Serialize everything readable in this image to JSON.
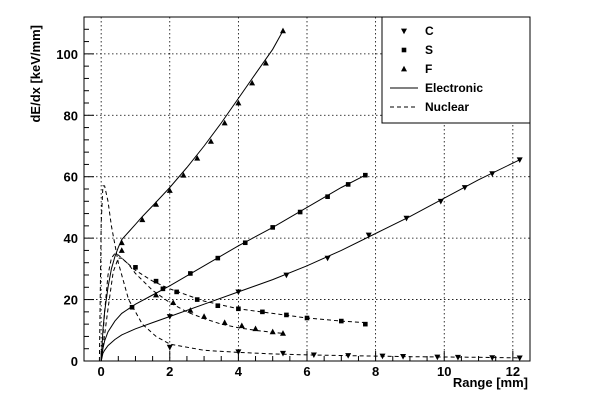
{
  "chart_data": {
    "type": "line",
    "title": "",
    "xlabel": "Range [mm]",
    "ylabel": "dE/dx [keV/mm]",
    "xlim": [
      -0.5,
      12.5
    ],
    "ylim": [
      0,
      112
    ],
    "x_ticks": [
      0,
      2,
      4,
      6,
      8,
      10,
      12
    ],
    "y_ticks": [
      0,
      20,
      40,
      60,
      80,
      100
    ],
    "grid": true,
    "legend_position": "top-right",
    "legend": [
      {
        "label": "C",
        "kind": "marker",
        "marker": "triangle-down"
      },
      {
        "label": "S",
        "kind": "marker",
        "marker": "square"
      },
      {
        "label": "F",
        "kind": "marker",
        "marker": "triangle-up"
      },
      {
        "label": "Electronic",
        "kind": "line",
        "dash": "solid"
      },
      {
        "label": "Nuclear",
        "kind": "line",
        "dash": "dashed"
      }
    ],
    "series": [
      {
        "name": "F",
        "component": "Electronic",
        "marker": "triangle-up",
        "dash": "solid",
        "x": [
          0,
          0.05,
          0.1,
          0.2,
          0.3,
          0.4,
          0.5,
          0.6,
          0.8,
          1.0,
          1.2,
          1.5,
          2.0,
          2.5,
          3.0,
          3.5,
          4.0,
          4.5,
          5.0,
          5.3
        ],
        "y": [
          0,
          10,
          16,
          24,
          30,
          34,
          37,
          39.5,
          42,
          44.5,
          47,
          50.5,
          56.5,
          63,
          70,
          77.5,
          85.5,
          93.5,
          101.5,
          107.5
        ],
        "marker_x": [
          0.6,
          1.2,
          1.6,
          2.0,
          2.4,
          2.8,
          3.2,
          3.6,
          4.0,
          4.4,
          4.8,
          5.3
        ],
        "marker_y": [
          38.5,
          46,
          51,
          55.5,
          60.5,
          66,
          71.5,
          77.5,
          84,
          90.5,
          97,
          107.5
        ]
      },
      {
        "name": "S",
        "component": "Electronic",
        "marker": "square",
        "dash": "solid",
        "x": [
          0,
          0.05,
          0.1,
          0.2,
          0.4,
          0.6,
          0.8,
          1.0,
          1.5,
          2.0,
          3.0,
          4.0,
          5.0,
          6.0,
          7.0,
          7.7
        ],
        "y": [
          0,
          4,
          6.5,
          9.5,
          13,
          15.5,
          17,
          18.5,
          21.5,
          24.5,
          31,
          37.5,
          43.5,
          50,
          56.5,
          60.5
        ],
        "marker_x": [
          0.9,
          1.8,
          2.6,
          3.4,
          4.2,
          5.0,
          5.8,
          6.6,
          7.2,
          7.7
        ],
        "marker_y": [
          17.5,
          23.5,
          28.5,
          33.5,
          38.5,
          43.5,
          48.5,
          53.5,
          57.5,
          60.5
        ]
      },
      {
        "name": "C",
        "component": "Electronic",
        "marker": "triangle-down",
        "dash": "solid",
        "x": [
          0,
          0.05,
          0.1,
          0.2,
          0.4,
          0.6,
          1.0,
          1.5,
          2.0,
          3.0,
          4.0,
          5.0,
          6.0,
          7.0,
          8.0,
          9.0,
          10.0,
          11.0,
          12.2
        ],
        "y": [
          0,
          2.5,
          3.5,
          5,
          7,
          8.5,
          10.5,
          12.5,
          14.5,
          18.5,
          22.5,
          26.5,
          31,
          36,
          41.5,
          47,
          53,
          59,
          65.5
        ],
        "marker_x": [
          2.0,
          4.0,
          5.4,
          6.6,
          7.8,
          8.9,
          9.9,
          10.6,
          11.4,
          12.2
        ],
        "marker_y": [
          14.5,
          22.5,
          28,
          33.5,
          41,
          46.5,
          52,
          56.5,
          61,
          65.5
        ]
      },
      {
        "name": "C",
        "component": "Nuclear",
        "marker": "triangle-down",
        "dash": "dashed",
        "x": [
          -0.05,
          0.0,
          0.05,
          0.1,
          0.2,
          0.3,
          0.5,
          0.8,
          1.2,
          1.6,
          2.0,
          3.0,
          4.0,
          5.0,
          6.0,
          7.0,
          8.0,
          9.0,
          10.0,
          11.0,
          12.2
        ],
        "y": [
          0,
          45,
          57,
          57,
          52,
          44,
          32,
          20,
          12,
          8,
          5.5,
          3.5,
          2.8,
          2.3,
          2.0,
          1.8,
          1.6,
          1.4,
          1.3,
          1.2,
          1.0
        ],
        "marker_x": [
          2.0,
          4.0,
          5.3,
          6.2,
          7.2,
          8.2,
          8.8,
          9.8,
          10.4,
          11.4,
          12.2
        ],
        "marker_y": [
          4.5,
          3.0,
          2.5,
          2.0,
          1.8,
          1.6,
          1.5,
          1.3,
          1.2,
          1.1,
          1.0
        ]
      },
      {
        "name": "S",
        "component": "Nuclear",
        "marker": "square",
        "dash": "dashed",
        "x": [
          0,
          0.1,
          0.2,
          0.3,
          0.4,
          0.5,
          0.7,
          1.0,
          1.5,
          2.0,
          2.5,
          3.0,
          4.0,
          5.0,
          6.0,
          7.0,
          7.7
        ],
        "y": [
          0,
          16,
          28,
          33.5,
          35,
          34.5,
          32.5,
          29.5,
          26,
          23.5,
          21.5,
          19.5,
          17,
          15.5,
          14,
          13,
          12.5
        ],
        "marker_x": [
          1.0,
          1.6,
          2.2,
          2.8,
          3.4,
          4.0,
          4.7,
          5.4,
          6.0,
          7.0,
          7.7
        ],
        "marker_y": [
          30.5,
          26,
          22.5,
          20,
          18,
          17,
          16,
          15,
          14,
          13,
          12
        ]
      },
      {
        "name": "F",
        "component": "Nuclear",
        "marker": "triangle-up",
        "dash": "dashed",
        "x": [
          0,
          0.2,
          0.35,
          0.5,
          0.6,
          0.8,
          1.0,
          1.5,
          2.0,
          2.5,
          3.0,
          3.5,
          4.0,
          4.5,
          5.0,
          5.3
        ],
        "y": [
          0,
          17,
          29,
          33.5,
          33.5,
          31.5,
          28.5,
          23,
          19,
          16,
          13.8,
          12,
          10.8,
          10,
          9.3,
          9
        ],
        "marker_x": [
          0.6,
          1.6,
          2.1,
          2.6,
          3.0,
          3.6,
          4.1,
          4.5,
          5.0,
          5.3
        ],
        "marker_y": [
          36,
          21.5,
          19,
          16.5,
          14.5,
          12.5,
          11.5,
          10.5,
          9.5,
          9
        ]
      }
    ]
  }
}
